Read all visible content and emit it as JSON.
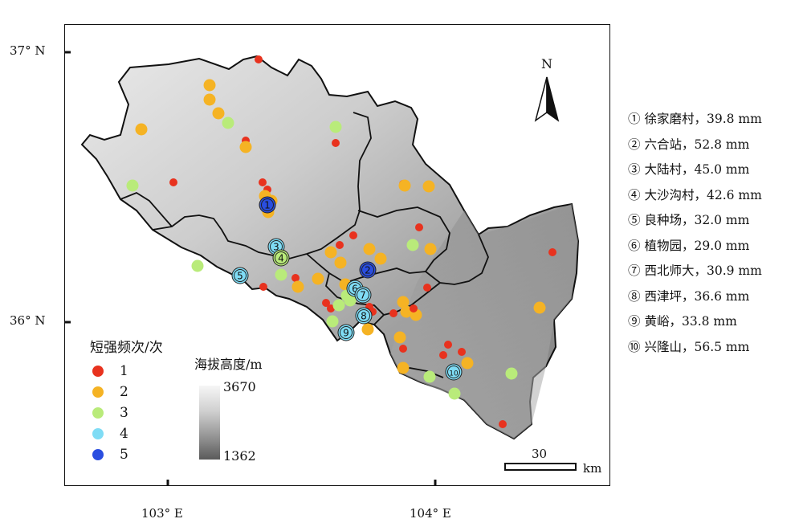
{
  "axes": {
    "lat_top": "37° N",
    "lat_bottom": "36° N",
    "lon_left": "103° E",
    "lon_right": "104° E"
  },
  "north_arrow": {
    "label": "N"
  },
  "legend_frequency": {
    "title": "短强频次/次",
    "items": [
      {
        "label": "1",
        "color": "#e8321e"
      },
      {
        "label": "2",
        "color": "#f5b324"
      },
      {
        "label": "3",
        "color": "#b9eb7a"
      },
      {
        "label": "4",
        "color": "#7fdcf5"
      },
      {
        "label": "5",
        "color": "#2a4ee0"
      }
    ]
  },
  "legend_elevation": {
    "title": "海拔高度/m",
    "max": "3670",
    "min": "1362"
  },
  "scale_bar": {
    "value": "30",
    "unit": "km"
  },
  "stations": [
    {
      "id": "1",
      "symbol": "①",
      "name": "徐家磨村",
      "value": "39.8 mm",
      "freq": 5
    },
    {
      "id": "2",
      "symbol": "②",
      "name": "六合站",
      "value": "52.8 mm",
      "freq": 5
    },
    {
      "id": "3",
      "symbol": "③",
      "name": "大陆村",
      "value": "45.0 mm",
      "freq": 4
    },
    {
      "id": "4",
      "symbol": "④",
      "name": "大沙沟村",
      "value": "42.6 mm",
      "freq": 3
    },
    {
      "id": "5",
      "symbol": "⑤",
      "name": "良种场",
      "value": "32.0 mm",
      "freq": 4
    },
    {
      "id": "6",
      "symbol": "⑥",
      "name": "植物园",
      "value": "29.0 mm",
      "freq": 4
    },
    {
      "id": "7",
      "symbol": "⑦",
      "name": "西北师大",
      "value": "30.9 mm",
      "freq": 4
    },
    {
      "id": "8",
      "symbol": "⑧",
      "name": "西津坪",
      "value": "36.6 mm",
      "freq": 4
    },
    {
      "id": "9",
      "symbol": "⑨",
      "name": "黄峪",
      "value": "33.8 mm",
      "freq": 4
    },
    {
      "id": "10",
      "symbol": "⑩",
      "name": "兴隆山",
      "value": "56.5 mm",
      "freq": 4
    }
  ]
}
